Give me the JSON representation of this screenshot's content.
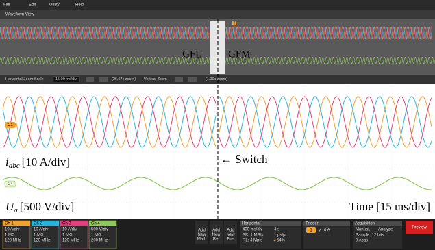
{
  "menu": [
    "File",
    "Edit",
    "Utility",
    "Help"
  ],
  "tab": "Waveform View",
  "overview": {
    "left_label": "GFL",
    "right_label": "GFM",
    "trigger_marker": "T"
  },
  "zoom_bar": {
    "horizontal_label": "Horizontal Zoom Scale",
    "horizontal_value": "15.00 ms/div",
    "horizontal_factor": "(26.67x zoom)",
    "vertical_label": "Vertical Zoom",
    "vertical_factor": "(1.00x zoom)"
  },
  "plot": {
    "current_badge": "C1",
    "voltage_badge": "C4",
    "current_label": {
      "symbol": "i",
      "subscript": "abc",
      "scale": "[10 A/div]"
    },
    "switch_label": "← Switch",
    "voltage_label": {
      "symbol": "U",
      "subscript": "a",
      "scale": "[500 V/div]"
    },
    "time_label": "Time [15 ms/div]"
  },
  "channels": [
    {
      "name": "Ch 1",
      "scale": "10 A/div",
      "impedance": "1 MΩ",
      "bandwidth": "120 MHz"
    },
    {
      "name": "Ch 2",
      "scale": "10 A/div",
      "impedance": "1 MΩ",
      "bandwidth": "120 MHz"
    },
    {
      "name": "Ch 3",
      "scale": "10 A/div",
      "impedance": "1 MΩ",
      "bandwidth": "120 MHz"
    },
    {
      "name": "Ch 4",
      "scale": "500 V/div",
      "impedance": "1 MΩ",
      "bandwidth": "200 MHz"
    }
  ],
  "add_buttons": [
    [
      "Add",
      "New",
      "Math"
    ],
    [
      "Add",
      "New",
      "Ref"
    ],
    [
      "Add",
      "New",
      "Bus"
    ]
  ],
  "horizontal": {
    "title": "Horizontal",
    "scale": "400 ms/div",
    "duration": "4 s",
    "sample_rate": "SR: 1 MS/s",
    "resolution": "1 µs/pt",
    "record_length": "RL: 4 Mpts",
    "position": "54%"
  },
  "trigger": {
    "title": "Trigger",
    "source": "1",
    "level": "0 A"
  },
  "acquisition": {
    "title": "Acquisition",
    "mode": "Manual,",
    "action": "Analyze",
    "sample": "Sample: 12 bits",
    "count": "0 Acqs"
  },
  "preview": "Preview"
}
